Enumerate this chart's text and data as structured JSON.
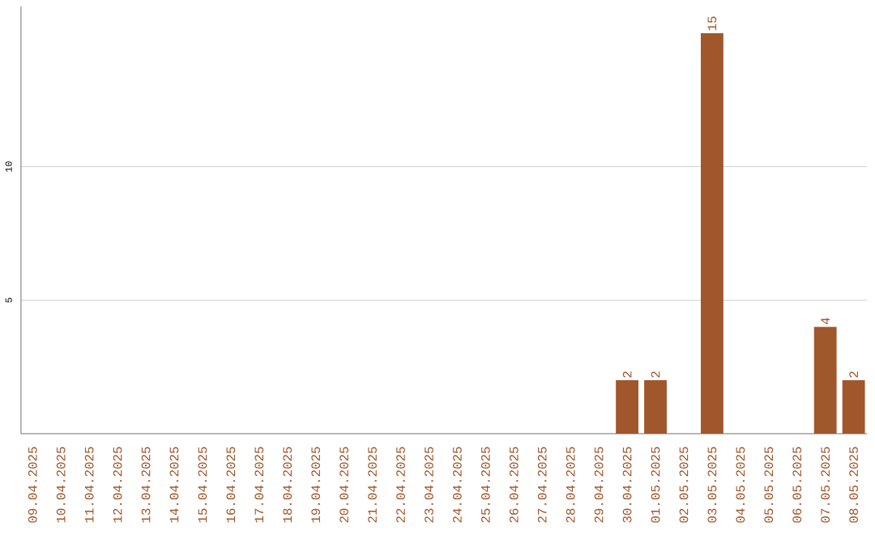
{
  "chart_data": {
    "type": "bar",
    "categories": [
      "09.04.2025",
      "10.04.2025",
      "11.04.2025",
      "12.04.2025",
      "13.04.2025",
      "14.04.2025",
      "15.04.2025",
      "16.04.2025",
      "17.04.2025",
      "18.04.2025",
      "19.04.2025",
      "20.04.2025",
      "21.04.2025",
      "22.04.2025",
      "23.04.2025",
      "24.04.2025",
      "25.04.2025",
      "26.04.2025",
      "27.04.2025",
      "28.04.2025",
      "29.04.2025",
      "30.04.2025",
      "01.05.2025",
      "02.05.2025",
      "03.05.2025",
      "04.05.2025",
      "05.05.2025",
      "06.05.2025",
      "07.05.2025",
      "08.05.2025"
    ],
    "values": [
      0,
      0,
      0,
      0,
      0,
      0,
      0,
      0,
      0,
      0,
      0,
      0,
      0,
      0,
      0,
      0,
      0,
      0,
      0,
      0,
      0,
      2,
      2,
      0,
      15,
      0,
      0,
      0,
      4,
      2
    ],
    "value_labels": [
      null,
      null,
      null,
      null,
      null,
      null,
      null,
      null,
      null,
      null,
      null,
      null,
      null,
      null,
      null,
      null,
      null,
      null,
      null,
      null,
      null,
      "2",
      "2",
      null,
      "15",
      null,
      null,
      null,
      "4",
      "2"
    ],
    "color": "#a0572c",
    "ylim": [
      0,
      16
    ],
    "yticks": [
      5,
      10
    ],
    "grid": "y"
  }
}
